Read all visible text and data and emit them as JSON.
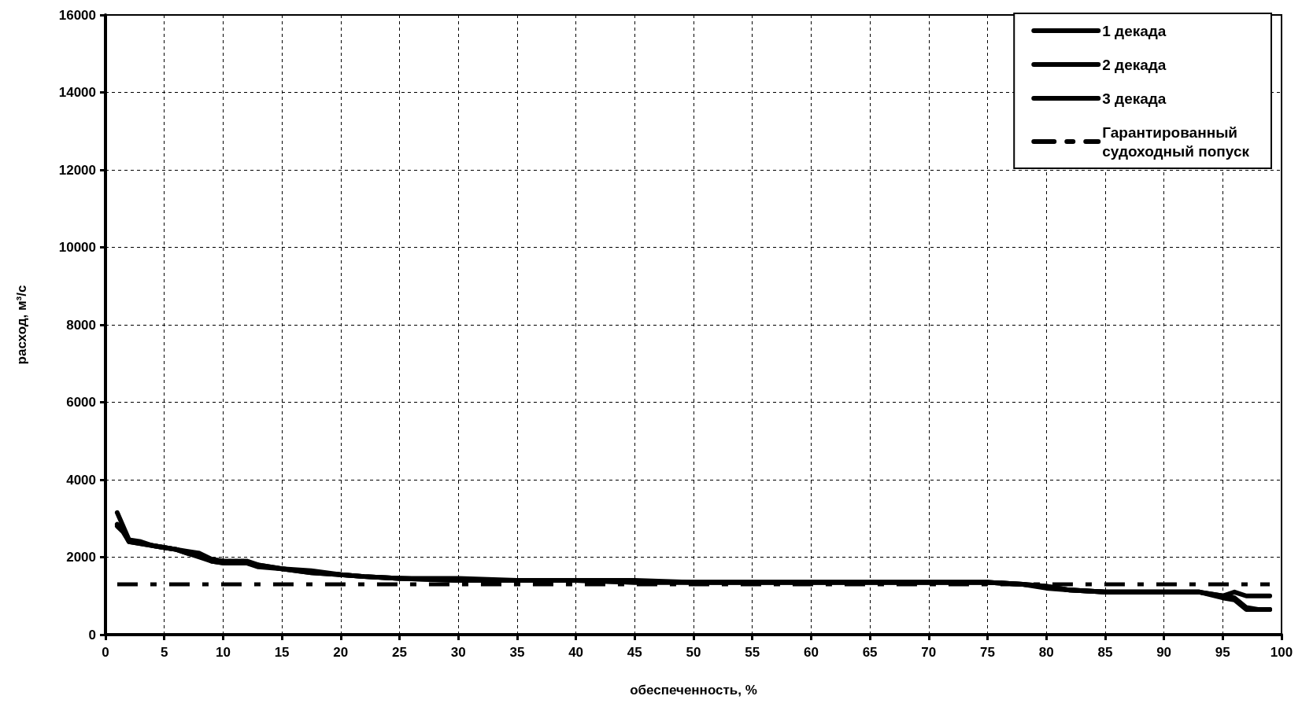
{
  "chart_data": {
    "type": "line",
    "xlabel": "обеспеченность, %",
    "ylabel": "расход, м³/с",
    "xlim": [
      0,
      100
    ],
    "xticks": [
      0,
      5,
      10,
      15,
      20,
      25,
      30,
      35,
      40,
      45,
      50,
      55,
      60,
      65,
      70,
      75,
      80,
      85,
      90,
      95,
      100
    ],
    "ylim": [
      0,
      16000
    ],
    "yticks": [
      0,
      2000,
      4000,
      6000,
      8000,
      10000,
      12000,
      14000,
      16000
    ],
    "grid": true,
    "legend": "top right",
    "marker": "none",
    "series": [
      {
        "name": "1 декада",
        "color": "#000000",
        "x": [
          1,
          1.5,
          2,
          3,
          4,
          5,
          6,
          7,
          8,
          9,
          10,
          12,
          13,
          15,
          17.5,
          20,
          22,
          25,
          30,
          35,
          40,
          45,
          50,
          55,
          60,
          65,
          70,
          75,
          78,
          80,
          82,
          85,
          90,
          93,
          95,
          96,
          97,
          98,
          99
        ],
        "values": [
          3150,
          2800,
          2450,
          2400,
          2300,
          2250,
          2200,
          2150,
          2100,
          1950,
          1900,
          1900,
          1800,
          1700,
          1650,
          1550,
          1500,
          1450,
          1450,
          1400,
          1400,
          1400,
          1350,
          1350,
          1350,
          1350,
          1350,
          1350,
          1300,
          1250,
          1150,
          1100,
          1100,
          1100,
          1000,
          950,
          700,
          650,
          650
        ]
      },
      {
        "name": "2 декада",
        "color": "#000000",
        "x": [
          1,
          1.5,
          2,
          3,
          4,
          5,
          6,
          7,
          8,
          9,
          10,
          12,
          13,
          15,
          17.5,
          20,
          22,
          25,
          30,
          35,
          40,
          45,
          50,
          55,
          60,
          65,
          70,
          75,
          78,
          80,
          82,
          85,
          90,
          93,
          95,
          96,
          97,
          98,
          99
        ],
        "values": [
          2800,
          2650,
          2400,
          2350,
          2300,
          2250,
          2200,
          2100,
          2050,
          1900,
          1850,
          1850,
          1750,
          1700,
          1600,
          1550,
          1500,
          1450,
          1400,
          1400,
          1400,
          1350,
          1350,
          1350,
          1350,
          1350,
          1350,
          1350,
          1300,
          1250,
          1150,
          1100,
          1100,
          1100,
          1000,
          1100,
          1000,
          1000,
          1000
        ]
      },
      {
        "name": "3 декада",
        "color": "#000000",
        "x": [
          1,
          1.5,
          2,
          3,
          4,
          5,
          6,
          7,
          8,
          9,
          10,
          12,
          13,
          15,
          17.5,
          20,
          22,
          25,
          30,
          35,
          40,
          45,
          50,
          55,
          60,
          65,
          70,
          75,
          78,
          80,
          82,
          85,
          90,
          93,
          95,
          96,
          97,
          98,
          99
        ],
        "values": [
          2850,
          2700,
          2400,
          2350,
          2300,
          2250,
          2200,
          2100,
          2000,
          1900,
          1850,
          1850,
          1800,
          1700,
          1600,
          1550,
          1500,
          1450,
          1400,
          1400,
          1400,
          1350,
          1350,
          1350,
          1350,
          1350,
          1350,
          1350,
          1300,
          1200,
          1150,
          1100,
          1100,
          1100,
          950,
          900,
          650,
          650,
          650
        ]
      },
      {
        "name": "Гарантированный судоходный попуск",
        "color": "#000000",
        "line_style": "dashed",
        "x": [
          1,
          99
        ],
        "values": [
          1300,
          1300
        ]
      }
    ]
  }
}
